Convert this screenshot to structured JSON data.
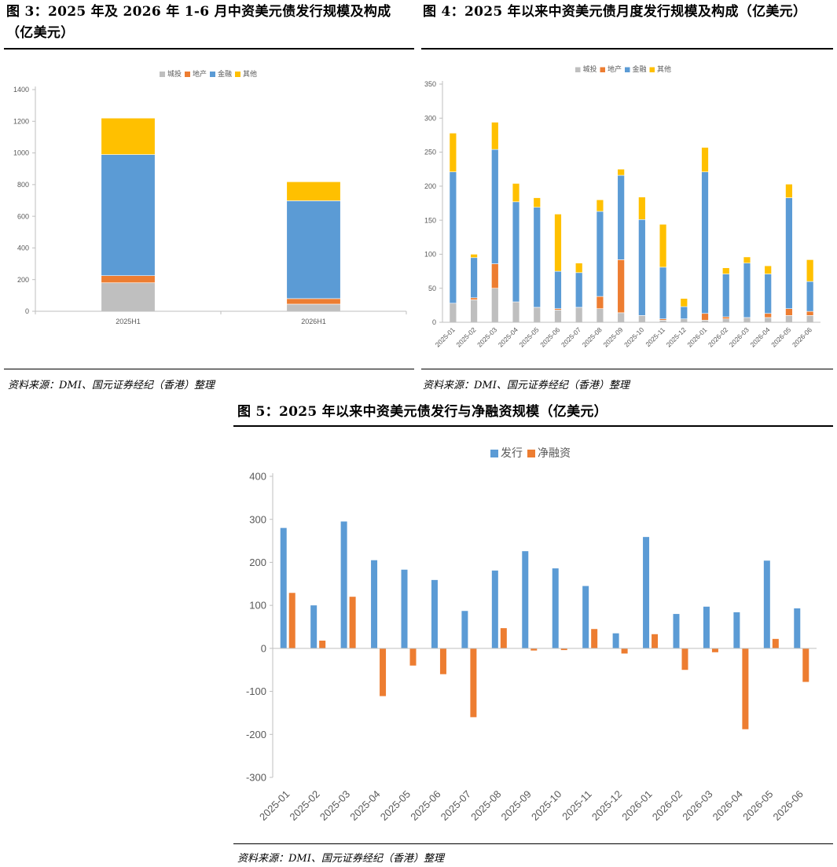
{
  "figures": [
    {
      "title": "图 3：2025 年及 2026 年 1-6 月中资美元债发行规模及构成（亿美元）",
      "source": "资料来源：DMI、国元证券经纪（香港）整理"
    },
    {
      "title": "图 4：2025 年以来中资美元债月度发行规模及构成（亿美元）",
      "source": "资料来源：DMI、国元证券经纪（香港）整理"
    },
    {
      "title": "图 5：2025 年以来中资美元债发行与净融资规模（亿美元）",
      "source": "资料来源：DMI、国元证券经纪（香港）整理"
    }
  ],
  "colors": {
    "grey": "#BFBFBF",
    "orange": "#ED7D31",
    "blue": "#5B9BD5",
    "yellow": "#FFC000"
  },
  "chart_data": [
    {
      "type": "bar",
      "stacked": true,
      "title": "",
      "categories": [
        "2025H1",
        "2026H1"
      ],
      "series": [
        {
          "name": "城投",
          "color": "#BFBFBF",
          "values": [
            180,
            45
          ]
        },
        {
          "name": "地产",
          "color": "#ED7D31",
          "values": [
            45,
            35
          ]
        },
        {
          "name": "金融",
          "color": "#5B9BD5",
          "values": [
            765,
            618
          ]
        },
        {
          "name": "其他",
          "color": "#FFC000",
          "values": [
            230,
            120
          ]
        }
      ],
      "ylim": [
        0,
        1400
      ],
      "yticks": [
        0,
        200,
        400,
        600,
        800,
        1000,
        1200,
        1400
      ],
      "grid": false,
      "legend": "top-center"
    },
    {
      "type": "bar",
      "stacked": true,
      "title": "",
      "categories": [
        "2025-01",
        "2025-02",
        "2025-03",
        "2025-04",
        "2025-05",
        "2025-06",
        "2025-07",
        "2025-08",
        "2025-09",
        "2025-10",
        "2025-11",
        "2025-12",
        "2026-01",
        "2026-02",
        "2026-03",
        "2026-04",
        "2026-05",
        "2026-06"
      ],
      "series": [
        {
          "name": "城投",
          "color": "#BFBFBF",
          "values": [
            28,
            33,
            50,
            30,
            22,
            18,
            22,
            20,
            14,
            10,
            3,
            5,
            3,
            5,
            7,
            7,
            10,
            10
          ]
        },
        {
          "name": "地产",
          "color": "#ED7D31",
          "values": [
            0,
            3,
            36,
            0,
            0,
            2,
            0,
            18,
            78,
            0,
            2,
            0,
            10,
            3,
            0,
            6,
            10,
            6
          ]
        },
        {
          "name": "金融",
          "color": "#5B9BD5",
          "values": [
            193,
            59,
            168,
            147,
            147,
            55,
            51,
            125,
            124,
            141,
            76,
            18,
            208,
            63,
            80,
            58,
            163,
            44
          ]
        },
        {
          "name": "其他",
          "color": "#FFC000",
          "values": [
            57,
            5,
            40,
            27,
            14,
            84,
            14,
            17,
            9,
            33,
            63,
            12,
            36,
            9,
            9,
            12,
            20,
            32
          ]
        }
      ],
      "ylim": [
        0,
        350
      ],
      "yticks": [
        0,
        50,
        100,
        150,
        200,
        250,
        300,
        350
      ],
      "grid": false,
      "legend": "top-center"
    },
    {
      "type": "bar",
      "stacked": false,
      "title": "",
      "categories": [
        "2025-01",
        "2025-02",
        "2025-03",
        "2025-04",
        "2025-05",
        "2025-06",
        "2025-07",
        "2025-08",
        "2025-09",
        "2025-10",
        "2025-11",
        "2025-12",
        "2026-01",
        "2026-02",
        "2026-03",
        "2026-04",
        "2026-05",
        "2026-06"
      ],
      "series": [
        {
          "name": "发行",
          "color": "#5B9BD5",
          "values": [
            280,
            100,
            295,
            205,
            183,
            159,
            87,
            181,
            226,
            186,
            145,
            35,
            259,
            80,
            97,
            84,
            204,
            93
          ]
        },
        {
          "name": "净融资",
          "color": "#ED7D31",
          "values": [
            129,
            18,
            120,
            -111,
            -40,
            -60,
            -160,
            47,
            -5,
            -4,
            45,
            -12,
            33,
            -50,
            -9,
            -188,
            22,
            -78
          ]
        }
      ],
      "ylim": [
        -300,
        400
      ],
      "yticks": [
        -300,
        -200,
        -100,
        0,
        100,
        200,
        300,
        400
      ],
      "grid": false,
      "legend": "top-center"
    }
  ]
}
